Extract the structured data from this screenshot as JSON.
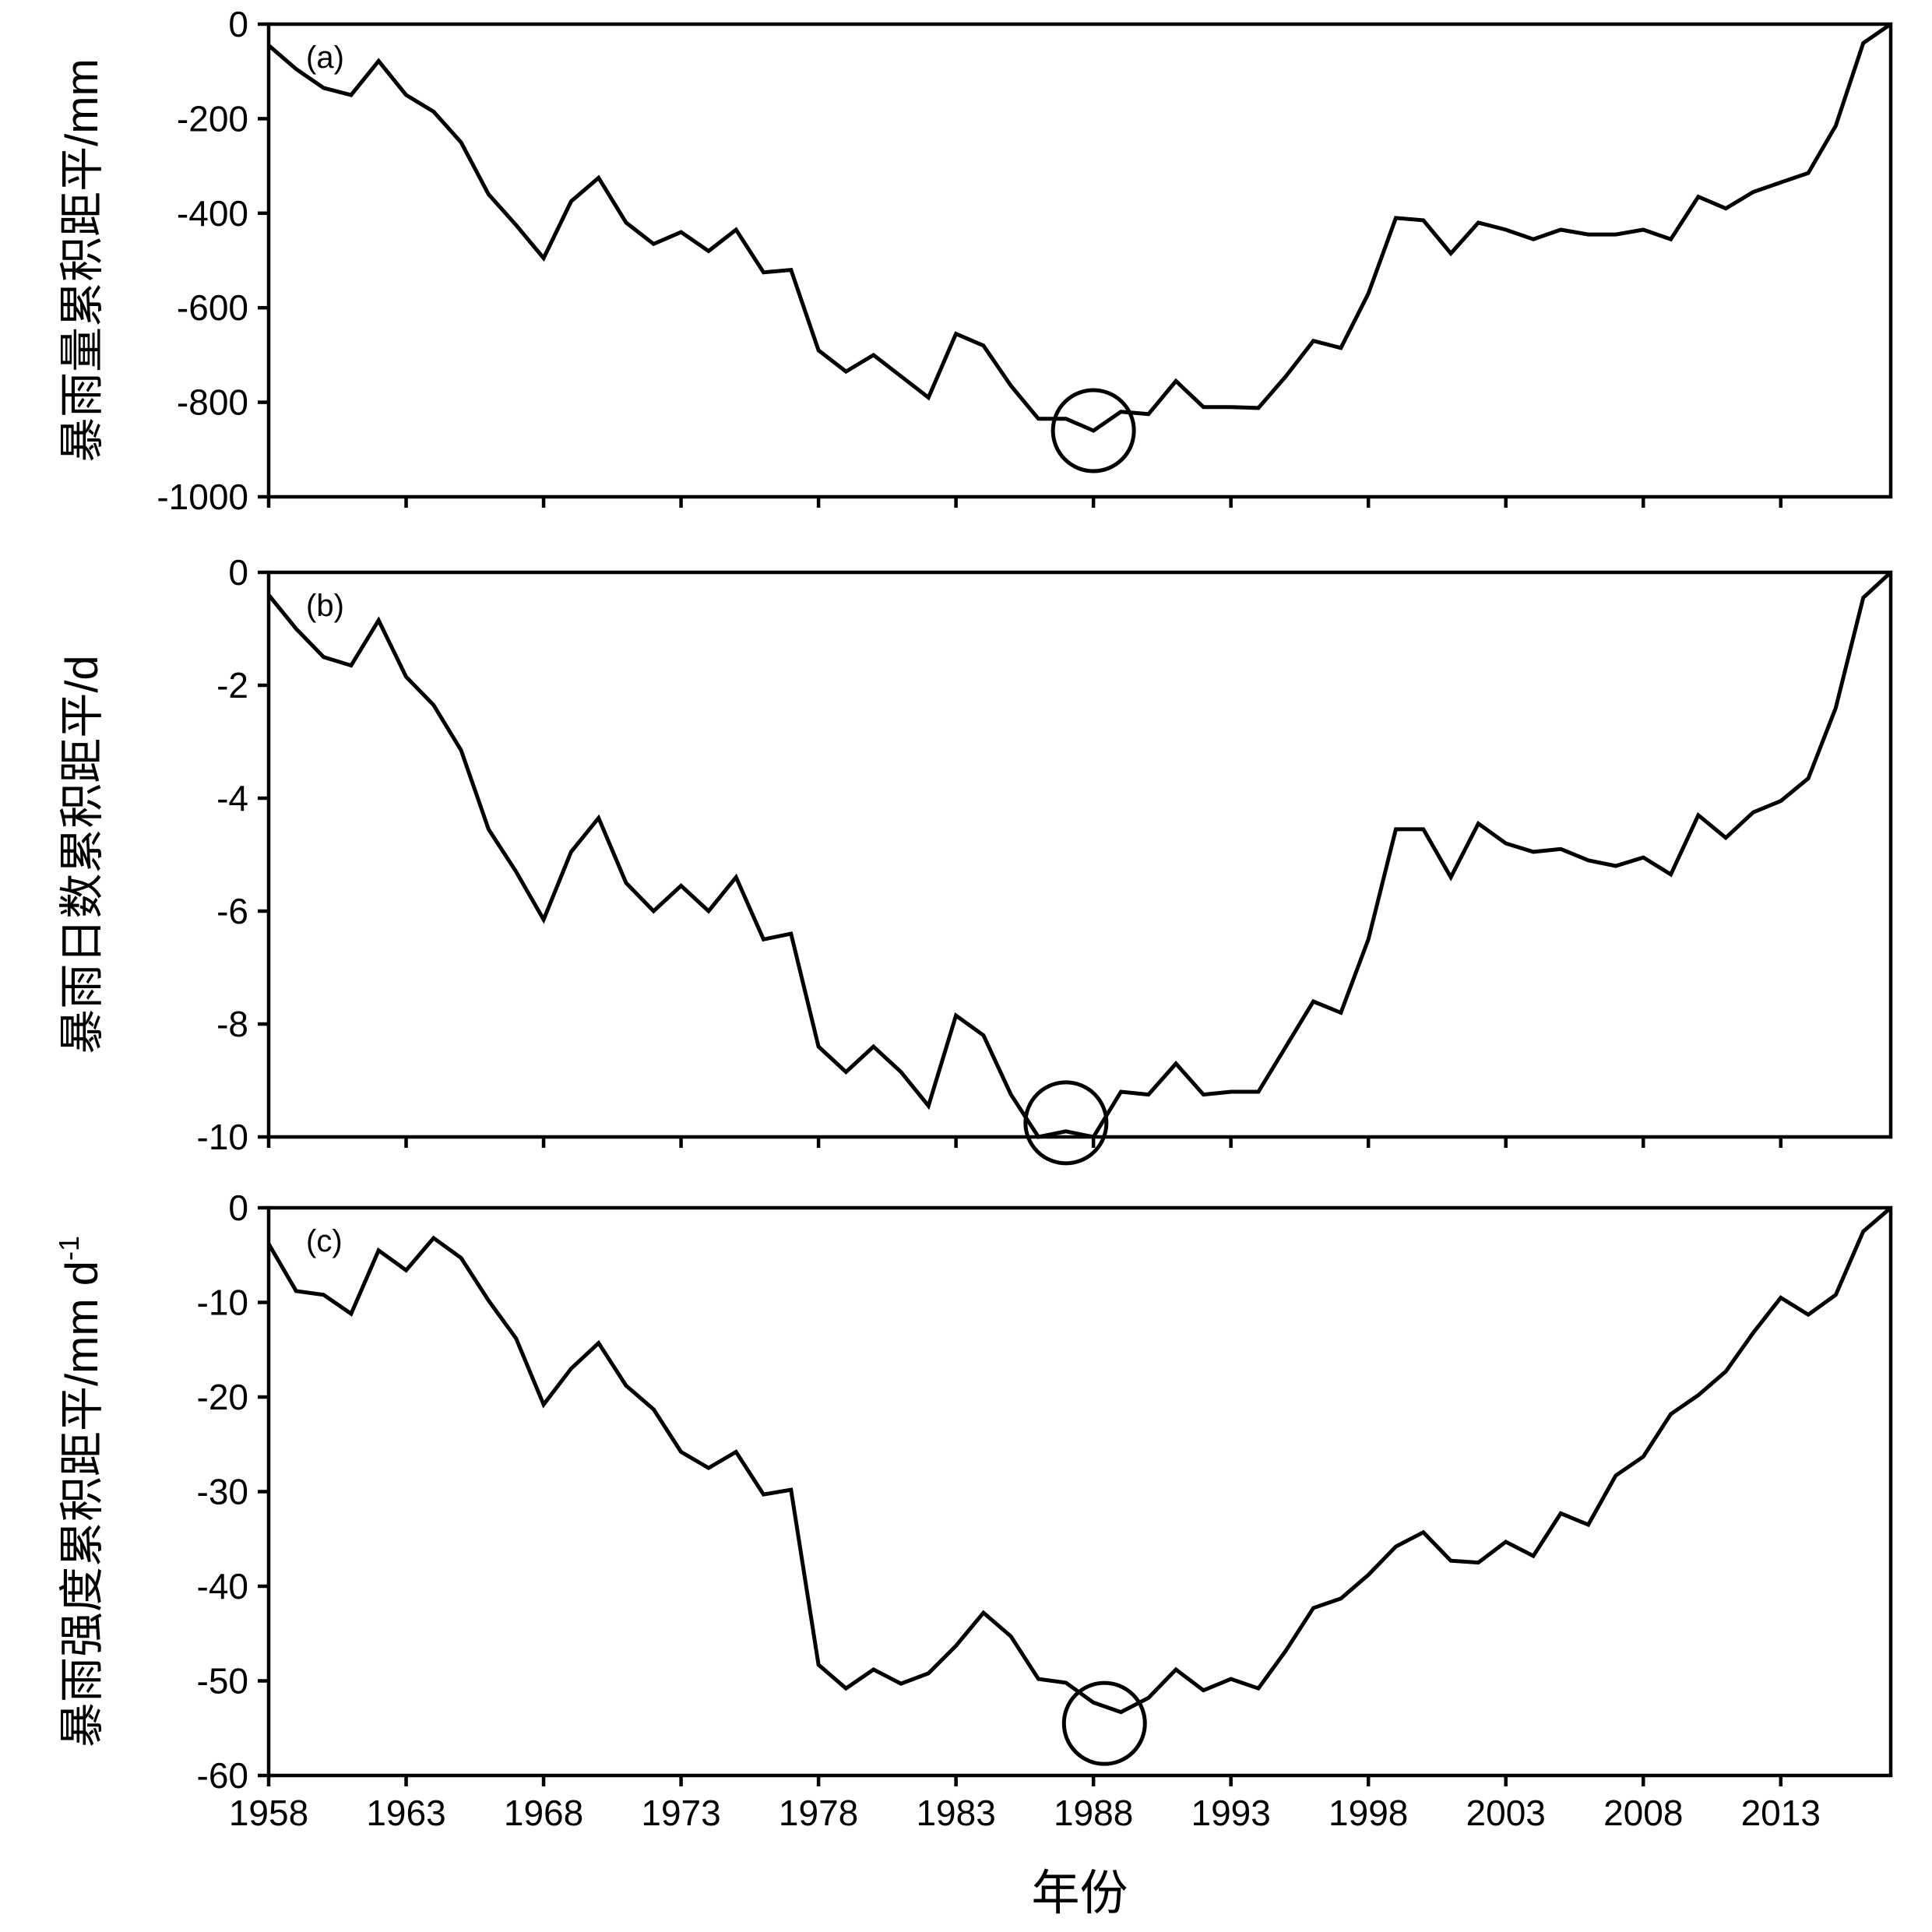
{
  "chart_data": [
    {
      "type": "line",
      "panel_label": "(a)",
      "ylabel": "暴雨量累积距平/mm",
      "ylim": [
        -1000,
        0
      ],
      "yticks": [
        0,
        -200,
        -400,
        -600,
        -800,
        -1000
      ],
      "x": [
        1958,
        1959,
        1960,
        1961,
        1962,
        1963,
        1964,
        1965,
        1966,
        1967,
        1968,
        1969,
        1970,
        1971,
        1972,
        1973,
        1974,
        1975,
        1976,
        1977,
        1978,
        1979,
        1980,
        1981,
        1982,
        1983,
        1984,
        1985,
        1986,
        1987,
        1988,
        1989,
        1990,
        1991,
        1992,
        1993,
        1994,
        1995,
        1996,
        1997,
        1998,
        1999,
        2000,
        2001,
        2002,
        2003,
        2004,
        2005,
        2006,
        2007,
        2008,
        2009,
        2010,
        2011,
        2012,
        2013,
        2014,
        2015,
        2016,
        2017
      ],
      "values": [
        -45,
        -95,
        -135,
        -150,
        -78,
        -150,
        -185,
        -250,
        -360,
        -425,
        -495,
        -375,
        -325,
        -420,
        -465,
        -440,
        -480,
        -435,
        -525,
        -520,
        -690,
        -735,
        -700,
        -745,
        -790,
        -655,
        -680,
        -765,
        -835,
        -835,
        -860,
        -820,
        -825,
        -755,
        -810,
        -810,
        -812,
        -745,
        -670,
        -685,
        -570,
        -410,
        -415,
        -485,
        -420,
        -435,
        -455,
        -435,
        -445,
        -445,
        -435,
        -455,
        -365,
        -390,
        -355,
        -335,
        -315,
        -215,
        -40,
        0
      ],
      "highlight": {
        "x": 1988,
        "y": -860
      }
    },
    {
      "type": "line",
      "panel_label": "(b)",
      "ylabel": "暴雨日数累积距平/d",
      "ylim": [
        -10,
        0
      ],
      "yticks": [
        0,
        -2,
        -4,
        -6,
        -8,
        -10
      ],
      "x": [
        1958,
        1959,
        1960,
        1961,
        1962,
        1963,
        1964,
        1965,
        1966,
        1967,
        1968,
        1969,
        1970,
        1971,
        1972,
        1973,
        1974,
        1975,
        1976,
        1977,
        1978,
        1979,
        1980,
        1981,
        1982,
        1983,
        1984,
        1985,
        1986,
        1987,
        1988,
        1989,
        1990,
        1991,
        1992,
        1993,
        1994,
        1995,
        1996,
        1997,
        1998,
        1999,
        2000,
        2001,
        2002,
        2003,
        2004,
        2005,
        2006,
        2007,
        2008,
        2009,
        2010,
        2011,
        2012,
        2013,
        2014,
        2015,
        2016,
        2017
      ],
      "values": [
        -0.4,
        -1.0,
        -1.5,
        -1.65,
        -0.85,
        -1.85,
        -2.35,
        -3.15,
        -4.55,
        -5.3,
        -6.15,
        -4.95,
        -4.35,
        -5.5,
        -6.0,
        -5.55,
        -6.0,
        -5.4,
        -6.5,
        -6.4,
        -8.4,
        -8.85,
        -8.4,
        -8.85,
        -9.45,
        -7.85,
        -8.2,
        -9.25,
        -10.0,
        -9.9,
        -10.0,
        -9.2,
        -9.25,
        -8.7,
        -9.25,
        -9.2,
        -9.2,
        -8.4,
        -7.6,
        -7.8,
        -6.5,
        -4.55,
        -4.55,
        -5.4,
        -4.45,
        -4.8,
        -4.95,
        -4.9,
        -5.1,
        -5.2,
        -5.05,
        -5.35,
        -4.3,
        -4.7,
        -4.25,
        -4.05,
        -3.65,
        -2.4,
        -0.45,
        0
      ],
      "highlight": {
        "x": 1987,
        "y": -9.75
      }
    },
    {
      "type": "line",
      "panel_label": "(c)",
      "ylabel": "暴雨强度累积距平/mm d",
      "ylabel_sup": "-1",
      "ylim": [
        -60,
        0
      ],
      "yticks": [
        0,
        -10,
        -20,
        -30,
        -40,
        -50,
        -60
      ],
      "x": [
        1958,
        1959,
        1960,
        1961,
        1962,
        1963,
        1964,
        1965,
        1966,
        1967,
        1968,
        1969,
        1970,
        1971,
        1972,
        1973,
        1974,
        1975,
        1976,
        1977,
        1978,
        1979,
        1980,
        1981,
        1982,
        1983,
        1984,
        1985,
        1986,
        1987,
        1988,
        1989,
        1990,
        1991,
        1992,
        1993,
        1994,
        1995,
        1996,
        1997,
        1998,
        1999,
        2000,
        2001,
        2002,
        2003,
        2004,
        2005,
        2006,
        2007,
        2008,
        2009,
        2010,
        2011,
        2012,
        2013,
        2014,
        2015,
        2016,
        2017
      ],
      "values": [
        -3.8,
        -8.8,
        -9.2,
        -11.2,
        -4.5,
        -6.6,
        -3.2,
        -5.3,
        -9.8,
        -13.8,
        -20.8,
        -17.0,
        -14.3,
        -18.8,
        -21.3,
        -25.8,
        -27.5,
        -25.8,
        -30.3,
        -29.8,
        -48.3,
        -50.8,
        -48.8,
        -50.3,
        -49.2,
        -46.3,
        -42.8,
        -45.3,
        -49.8,
        -50.2,
        -52.3,
        -53.3,
        -51.8,
        -48.8,
        -51.0,
        -49.8,
        -50.8,
        -46.8,
        -42.3,
        -41.3,
        -38.8,
        -35.8,
        -34.3,
        -37.3,
        -37.5,
        -35.3,
        -36.8,
        -32.3,
        -33.5,
        -28.3,
        -26.3,
        -21.8,
        -19.8,
        -17.3,
        -13.2,
        -9.5,
        -11.3,
        -9.2,
        -2.5,
        0
      ],
      "highlight": {
        "x": 1988.4,
        "y": -54.5
      }
    }
  ],
  "x_axis": {
    "title": "年份",
    "tick_labels": [
      "1958",
      "1963",
      "1968",
      "1973",
      "1978",
      "1983",
      "1988",
      "1993",
      "1998",
      "2003",
      "2008",
      "2013"
    ],
    "tick_values": [
      1958,
      1963,
      1968,
      1973,
      1978,
      1983,
      1988,
      1993,
      1998,
      2003,
      2008,
      2013
    ],
    "range": [
      1958,
      2017
    ]
  }
}
